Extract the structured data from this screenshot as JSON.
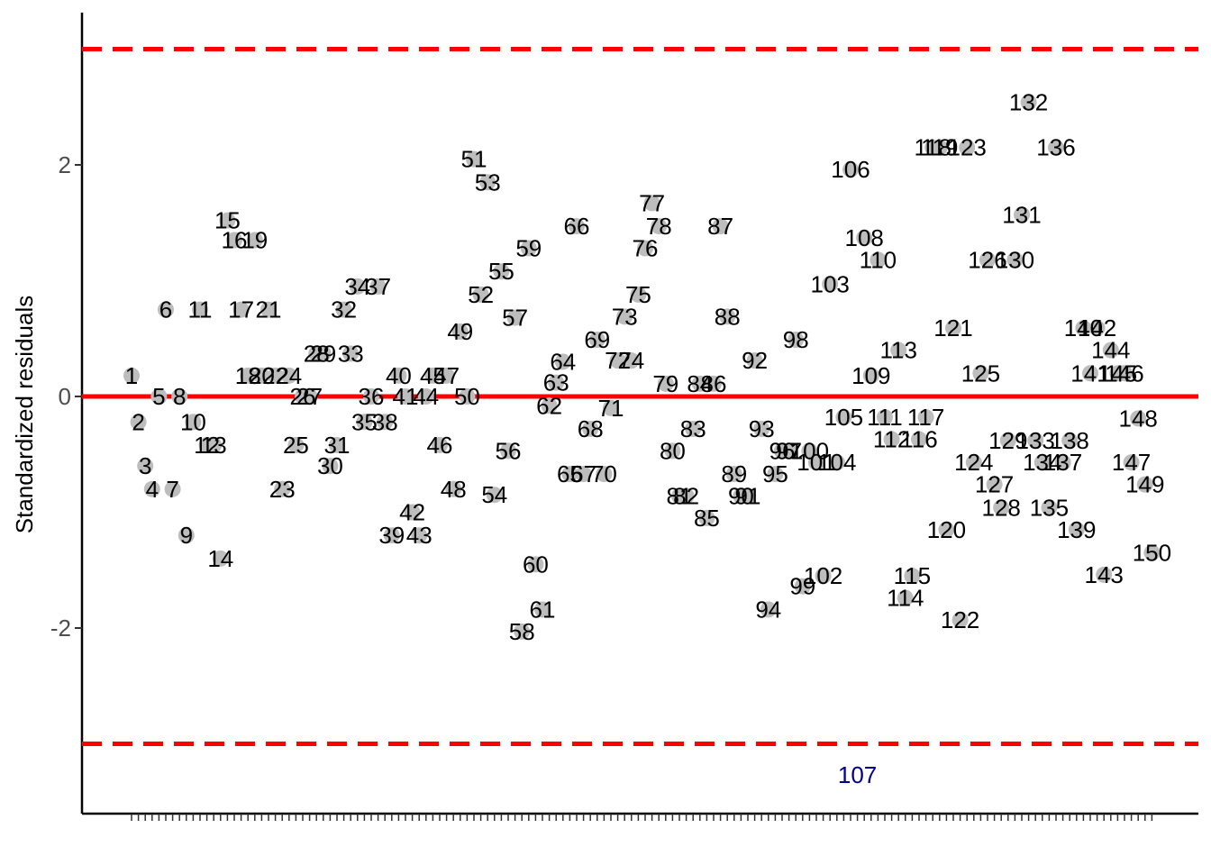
{
  "chart_data": {
    "type": "scatter",
    "ylabel": "Standardized residuals",
    "xlabel": "",
    "ylim": [
      -3.5,
      3.3
    ],
    "yticks": [
      -2,
      0,
      2
    ],
    "threshold": 3,
    "grid": false,
    "colors": {
      "point": "#bdbdbd",
      "label": "#000000",
      "outlier_label": "#00008b",
      "zero_line": "#ff0000",
      "threshold_line": "#ff0000"
    },
    "points": [
      {
        "x": 1,
        "y": 0.18
      },
      {
        "x": 2,
        "y": -0.22
      },
      {
        "x": 3,
        "y": -0.6
      },
      {
        "x": 4,
        "y": -0.8
      },
      {
        "x": 5,
        "y": 0.0
      },
      {
        "x": 6,
        "y": 0.75
      },
      {
        "x": 7,
        "y": -0.8
      },
      {
        "x": 8,
        "y": 0.0
      },
      {
        "x": 9,
        "y": -1.2
      },
      {
        "x": 10,
        "y": -0.22
      },
      {
        "x": 11,
        "y": 0.75
      },
      {
        "x": 12,
        "y": -0.42
      },
      {
        "x": 13,
        "y": -0.42
      },
      {
        "x": 14,
        "y": -1.4
      },
      {
        "x": 15,
        "y": 1.52
      },
      {
        "x": 16,
        "y": 1.35
      },
      {
        "x": 17,
        "y": 0.75
      },
      {
        "x": 18,
        "y": 0.18
      },
      {
        "x": 19,
        "y": 1.35
      },
      {
        "x": 20,
        "y": 0.18
      },
      {
        "x": 21,
        "y": 0.75
      },
      {
        "x": 22,
        "y": 0.18
      },
      {
        "x": 23,
        "y": -0.8
      },
      {
        "x": 24,
        "y": 0.18
      },
      {
        "x": 25,
        "y": -0.42
      },
      {
        "x": 26,
        "y": 0.0
      },
      {
        "x": 27,
        "y": 0.0
      },
      {
        "x": 28,
        "y": 0.37
      },
      {
        "x": 29,
        "y": 0.37
      },
      {
        "x": 30,
        "y": -0.6
      },
      {
        "x": 31,
        "y": -0.42
      },
      {
        "x": 32,
        "y": 0.75
      },
      {
        "x": 33,
        "y": 0.37
      },
      {
        "x": 34,
        "y": 0.95
      },
      {
        "x": 35,
        "y": -0.22
      },
      {
        "x": 36,
        "y": 0.0
      },
      {
        "x": 37,
        "y": 0.95
      },
      {
        "x": 38,
        "y": -0.22
      },
      {
        "x": 39,
        "y": -1.2
      },
      {
        "x": 40,
        "y": 0.18
      },
      {
        "x": 41,
        "y": 0.0
      },
      {
        "x": 42,
        "y": -1.0
      },
      {
        "x": 43,
        "y": -1.2
      },
      {
        "x": 44,
        "y": 0.0
      },
      {
        "x": 45,
        "y": 0.18
      },
      {
        "x": 46,
        "y": -0.42
      },
      {
        "x": 47,
        "y": 0.18
      },
      {
        "x": 48,
        "y": -0.8
      },
      {
        "x": 49,
        "y": 0.56
      },
      {
        "x": 50,
        "y": 0.0
      },
      {
        "x": 51,
        "y": 2.05
      },
      {
        "x": 52,
        "y": 0.88
      },
      {
        "x": 53,
        "y": 1.85
      },
      {
        "x": 54,
        "y": -0.85
      },
      {
        "x": 55,
        "y": 1.08
      },
      {
        "x": 56,
        "y": -0.47
      },
      {
        "x": 57,
        "y": 0.68
      },
      {
        "x": 58,
        "y": -2.03
      },
      {
        "x": 59,
        "y": 1.28
      },
      {
        "x": 60,
        "y": -1.45
      },
      {
        "x": 61,
        "y": -1.84
      },
      {
        "x": 62,
        "y": -0.08
      },
      {
        "x": 63,
        "y": 0.12
      },
      {
        "x": 64,
        "y": 0.3
      },
      {
        "x": 65,
        "y": -0.67
      },
      {
        "x": 66,
        "y": 1.47
      },
      {
        "x": 67,
        "y": -0.67
      },
      {
        "x": 68,
        "y": -0.28
      },
      {
        "x": 69,
        "y": 0.49
      },
      {
        "x": 70,
        "y": -0.67
      },
      {
        "x": 71,
        "y": -0.1
      },
      {
        "x": 72,
        "y": 0.31
      },
      {
        "x": 73,
        "y": 0.69
      },
      {
        "x": 74,
        "y": 0.31
      },
      {
        "x": 75,
        "y": 0.88
      },
      {
        "x": 76,
        "y": 1.28
      },
      {
        "x": 77,
        "y": 1.67
      },
      {
        "x": 78,
        "y": 1.47
      },
      {
        "x": 79,
        "y": 0.11
      },
      {
        "x": 80,
        "y": -0.47
      },
      {
        "x": 81,
        "y": -0.86
      },
      {
        "x": 82,
        "y": -0.86
      },
      {
        "x": 83,
        "y": -0.28
      },
      {
        "x": 84,
        "y": 0.11
      },
      {
        "x": 85,
        "y": -1.05
      },
      {
        "x": 86,
        "y": 0.11
      },
      {
        "x": 87,
        "y": 1.47
      },
      {
        "x": 88,
        "y": 0.69
      },
      {
        "x": 89,
        "y": -0.67
      },
      {
        "x": 90,
        "y": -0.86
      },
      {
        "x": 91,
        "y": -0.86
      },
      {
        "x": 92,
        "y": 0.31
      },
      {
        "x": 93,
        "y": -0.28
      },
      {
        "x": 94,
        "y": -1.84
      },
      {
        "x": 95,
        "y": -0.67
      },
      {
        "x": 96,
        "y": -0.47
      },
      {
        "x": 97,
        "y": -0.47
      },
      {
        "x": 98,
        "y": 0.49
      },
      {
        "x": 99,
        "y": -1.64
      },
      {
        "x": 100,
        "y": -0.47
      },
      {
        "x": 101,
        "y": -0.57
      },
      {
        "x": 102,
        "y": -1.55
      },
      {
        "x": 103,
        "y": 0.97
      },
      {
        "x": 104,
        "y": -0.57
      },
      {
        "x": 105,
        "y": -0.18
      },
      {
        "x": 106,
        "y": 1.96
      },
      {
        "x": 107,
        "y": -3.27
      },
      {
        "x": 108,
        "y": 1.37
      },
      {
        "x": 109,
        "y": 0.18
      },
      {
        "x": 110,
        "y": 1.18
      },
      {
        "x": 111,
        "y": -0.18
      },
      {
        "x": 112,
        "y": -0.37
      },
      {
        "x": 113,
        "y": 0.4
      },
      {
        "x": 114,
        "y": -1.74
      },
      {
        "x": 115,
        "y": -1.55
      },
      {
        "x": 116,
        "y": -0.37
      },
      {
        "x": 117,
        "y": -0.18
      },
      {
        "x": 118,
        "y": 2.15
      },
      {
        "x": 119,
        "y": 2.15
      },
      {
        "x": 120,
        "y": -1.15
      },
      {
        "x": 121,
        "y": 0.59
      },
      {
        "x": 122,
        "y": -1.93
      },
      {
        "x": 123,
        "y": 2.15
      },
      {
        "x": 124,
        "y": -0.57
      },
      {
        "x": 125,
        "y": 0.2
      },
      {
        "x": 126,
        "y": 1.18
      },
      {
        "x": 127,
        "y": -0.76
      },
      {
        "x": 128,
        "y": -0.96
      },
      {
        "x": 129,
        "y": -0.38
      },
      {
        "x": 130,
        "y": 1.18
      },
      {
        "x": 131,
        "y": 1.57
      },
      {
        "x": 132,
        "y": 2.54
      },
      {
        "x": 133,
        "y": -0.38
      },
      {
        "x": 134,
        "y": -0.57
      },
      {
        "x": 135,
        "y": -0.96
      },
      {
        "x": 136,
        "y": 2.15
      },
      {
        "x": 137,
        "y": -0.57
      },
      {
        "x": 138,
        "y": -0.38
      },
      {
        "x": 139,
        "y": -1.15
      },
      {
        "x": 140,
        "y": 0.59
      },
      {
        "x": 141,
        "y": 0.2
      },
      {
        "x": 142,
        "y": 0.59
      },
      {
        "x": 143,
        "y": -1.54
      },
      {
        "x": 144,
        "y": 0.4
      },
      {
        "x": 145,
        "y": 0.2
      },
      {
        "x": 146,
        "y": 0.2
      },
      {
        "x": 147,
        "y": -0.57
      },
      {
        "x": 148,
        "y": -0.19
      },
      {
        "x": 149,
        "y": -0.76
      },
      {
        "x": 150,
        "y": -1.35
      }
    ]
  }
}
